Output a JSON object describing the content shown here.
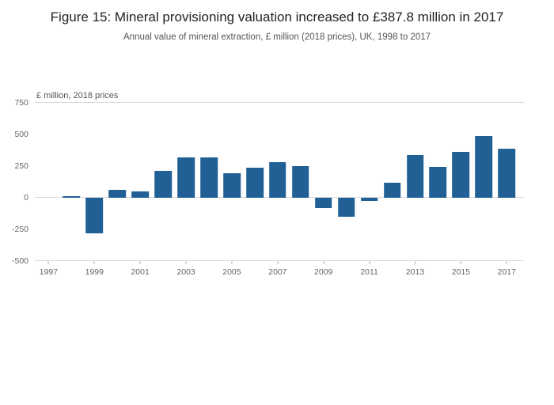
{
  "header": {
    "title": "Figure 15: Mineral provisioning valuation increased to £387.8 million in 2017",
    "subtitle": "Annual value of mineral extraction, £ million (2018 prices), UK, 1998 to 2017"
  },
  "chart_data": {
    "type": "bar",
    "title": "Figure 15: Mineral provisioning valuation increased to £387.8 million in 2017",
    "subtitle": "Annual value of mineral extraction, £ million (2018 prices), UK, 1998 to 2017",
    "unit_label": "£ million, 2018 prices",
    "categories": [
      1998,
      1999,
      2000,
      2001,
      2002,
      2003,
      2004,
      2005,
      2006,
      2007,
      2008,
      2009,
      2010,
      2011,
      2012,
      2013,
      2014,
      2015,
      2016,
      2017
    ],
    "values": [
      10,
      -280,
      60,
      50,
      210,
      320,
      320,
      190,
      235,
      280,
      250,
      -80,
      -150,
      -25,
      120,
      335,
      245,
      360,
      485,
      387.8
    ],
    "xlabel": "",
    "ylabel": "£ million, 2018 prices",
    "ylim": [
      -500,
      750
    ],
    "yticks": [
      750,
      500,
      250,
      0,
      -250,
      -500
    ],
    "xticks": [
      1997,
      1999,
      2001,
      2003,
      2005,
      2007,
      2009,
      2011,
      2013,
      2015,
      2017
    ],
    "x_domain": [
      1996.4,
      2017.75
    ],
    "gridlines_at": [
      750,
      0,
      -500
    ],
    "legend": "none",
    "bar_color": "#206095",
    "axis_color": "#d9d9d9",
    "tick_text_color": "#666666"
  }
}
